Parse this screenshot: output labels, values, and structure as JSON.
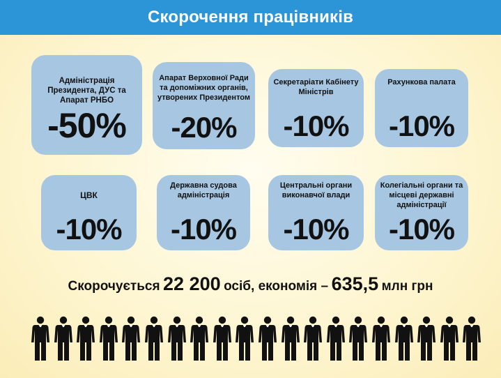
{
  "header": {
    "title": "Скорочення працівників"
  },
  "cards": [
    {
      "label": "Адміністрація Президента, ДУС та Апарат РНБО",
      "value": "-50%"
    },
    {
      "label": "Апарат Верховної Ради та допоміжних органів, утворених Президентом",
      "value": "-20%"
    },
    {
      "label": "Секретаріати Кабінету Міністрів",
      "value": "-10%"
    },
    {
      "label": "Рахункова палата",
      "value": "-10%"
    },
    {
      "label": "ЦВК",
      "value": "-10%"
    },
    {
      "label": "Державна судова адміністрація",
      "value": "-10%"
    },
    {
      "label": "Центральні органи виконавчої влади",
      "value": "-10%"
    },
    {
      "label": "Колегіальні органи та місцеві державні адміністрації",
      "value": "-10%"
    }
  ],
  "summary": {
    "prefix": "Скорочується",
    "count": "22 200",
    "mid": "осіб, економія –",
    "amount": "635,5",
    "suffix": "млн грн"
  },
  "people": {
    "count": 20,
    "icon": "businessman-icon",
    "color": "#111111"
  }
}
